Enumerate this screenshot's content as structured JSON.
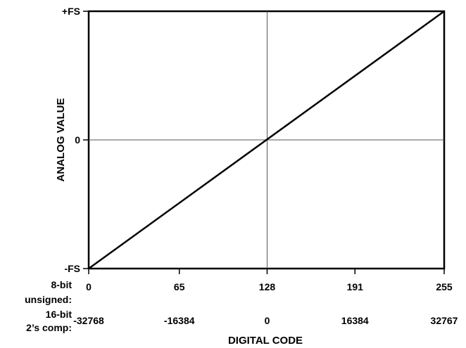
{
  "chart_data": {
    "type": "line",
    "title": "",
    "xlabel": "DIGITAL CODE",
    "ylabel": "ANALOG VALUE",
    "xlim": [
      0,
      255
    ],
    "ylim": [
      -1,
      1
    ],
    "grid": "center-crosshair",
    "legend": "none",
    "y_ticks": [
      {
        "value": 1,
        "label": "+FS"
      },
      {
        "value": 0,
        "label": "0"
      },
      {
        "value": -1,
        "label": "-FS"
      }
    ],
    "x_axis_rows": [
      {
        "label": [
          "8-bit",
          "unsigned:"
        ],
        "ticks": [
          {
            "value": 0,
            "label": "0"
          },
          {
            "value": 65,
            "label": "65"
          },
          {
            "value": 128,
            "label": "128"
          },
          {
            "value": 191,
            "label": "191"
          },
          {
            "value": 255,
            "label": "255"
          }
        ]
      },
      {
        "label": [
          "16-bit",
          "2’s comp:"
        ],
        "ticks": [
          {
            "value": 0,
            "label": "-32768"
          },
          {
            "value": 65,
            "label": "-16384"
          },
          {
            "value": 128,
            "label": "0"
          },
          {
            "value": 191,
            "label": "16384"
          },
          {
            "value": 255,
            "label": "32767"
          }
        ]
      }
    ],
    "series": [
      {
        "x": [
          0,
          255
        ],
        "y": [
          -1,
          1
        ],
        "color": "#000000"
      }
    ]
  }
}
